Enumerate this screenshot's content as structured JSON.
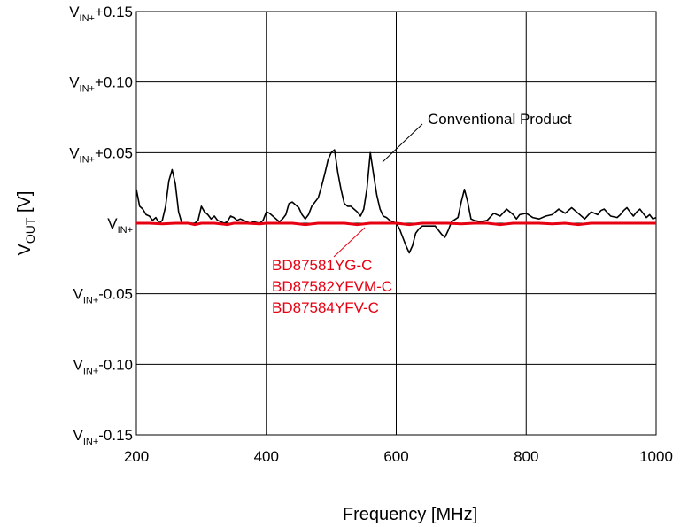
{
  "chart_data": {
    "type": "line",
    "xlabel": "Frequency [MHz]",
    "ylabel": {
      "main": "V",
      "sub": "OUT",
      "unit": " [V]"
    },
    "xlim": [
      200,
      1000
    ],
    "ylim": [
      -0.15,
      0.15
    ],
    "grid": true,
    "x_ticks": [
      "200",
      "400",
      "600",
      "800",
      "1000"
    ],
    "y_ticks": [
      {
        "value": 0.15,
        "base": "V",
        "sub": "IN+",
        "suffix": "+0.15"
      },
      {
        "value": 0.1,
        "base": "V",
        "sub": "IN+",
        "suffix": "+0.10"
      },
      {
        "value": 0.05,
        "base": "V",
        "sub": "IN+",
        "suffix": "+0.05"
      },
      {
        "value": 0.0,
        "base": "V",
        "sub": "IN+",
        "suffix": ""
      },
      {
        "value": -0.05,
        "base": "V",
        "sub": "IN+",
        "suffix": "-0.05"
      },
      {
        "value": -0.1,
        "base": "V",
        "sub": "IN+",
        "suffix": "-0.10"
      },
      {
        "value": -0.15,
        "base": "V",
        "sub": "IN+",
        "suffix": "-0.15"
      }
    ],
    "series": [
      {
        "name": "Conventional Product",
        "color": "#000000",
        "points": [
          [
            200,
            0.024
          ],
          [
            205,
            0.012
          ],
          [
            210,
            0.01
          ],
          [
            215,
            0.006
          ],
          [
            220,
            0.005
          ],
          [
            225,
            0.002
          ],
          [
            230,
            0.004
          ],
          [
            235,
            0.0
          ],
          [
            240,
            0.002
          ],
          [
            245,
            0.012
          ],
          [
            250,
            0.03
          ],
          [
            255,
            0.038
          ],
          [
            260,
            0.028
          ],
          [
            265,
            0.008
          ],
          [
            270,
            0.0
          ],
          [
            280,
            0.0
          ],
          [
            290,
            0.0
          ],
          [
            295,
            0.002
          ],
          [
            300,
            0.012
          ],
          [
            305,
            0.008
          ],
          [
            310,
            0.006
          ],
          [
            315,
            0.003
          ],
          [
            320,
            0.005
          ],
          [
            325,
            0.002
          ],
          [
            330,
            0.001
          ],
          [
            335,
            0.0
          ],
          [
            340,
            0.001
          ],
          [
            345,
            0.005
          ],
          [
            350,
            0.004
          ],
          [
            355,
            0.002
          ],
          [
            360,
            0.003
          ],
          [
            365,
            0.002
          ],
          [
            370,
            0.001
          ],
          [
            375,
            0.0
          ],
          [
            380,
            0.001
          ],
          [
            390,
            0.0
          ],
          [
            395,
            0.002
          ],
          [
            400,
            0.008
          ],
          [
            405,
            0.007
          ],
          [
            410,
            0.005
          ],
          [
            415,
            0.003
          ],
          [
            420,
            0.001
          ],
          [
            425,
            0.003
          ],
          [
            430,
            0.006
          ],
          [
            435,
            0.014
          ],
          [
            440,
            0.015
          ],
          [
            445,
            0.013
          ],
          [
            450,
            0.011
          ],
          [
            455,
            0.006
          ],
          [
            460,
            0.003
          ],
          [
            465,
            0.006
          ],
          [
            470,
            0.012
          ],
          [
            480,
            0.018
          ],
          [
            485,
            0.026
          ],
          [
            490,
            0.035
          ],
          [
            495,
            0.045
          ],
          [
            500,
            0.05
          ],
          [
            505,
            0.052
          ],
          [
            510,
            0.036
          ],
          [
            515,
            0.024
          ],
          [
            520,
            0.014
          ],
          [
            525,
            0.012
          ],
          [
            530,
            0.012
          ],
          [
            540,
            0.008
          ],
          [
            545,
            0.005
          ],
          [
            550,
            0.01
          ],
          [
            555,
            0.025
          ],
          [
            560,
            0.05
          ],
          [
            565,
            0.035
          ],
          [
            570,
            0.02
          ],
          [
            575,
            0.01
          ],
          [
            580,
            0.005
          ],
          [
            585,
            0.004
          ],
          [
            590,
            0.002
          ],
          [
            600,
            0.0
          ],
          [
            605,
            -0.004
          ],
          [
            610,
            -0.01
          ],
          [
            615,
            -0.016
          ],
          [
            620,
            -0.021
          ],
          [
            625,
            -0.016
          ],
          [
            630,
            -0.007
          ],
          [
            635,
            -0.004
          ],
          [
            640,
            -0.002
          ],
          [
            650,
            -0.002
          ],
          [
            660,
            -0.002
          ],
          [
            670,
            -0.008
          ],
          [
            675,
            -0.01
          ],
          [
            680,
            -0.005
          ],
          [
            685,
            0.001
          ],
          [
            695,
            0.004
          ],
          [
            700,
            0.015
          ],
          [
            705,
            0.024
          ],
          [
            710,
            0.015
          ],
          [
            715,
            0.003
          ],
          [
            720,
            0.002
          ],
          [
            730,
            0.001
          ],
          [
            740,
            0.002
          ],
          [
            750,
            0.007
          ],
          [
            760,
            0.005
          ],
          [
            770,
            0.01
          ],
          [
            780,
            0.006
          ],
          [
            785,
            0.003
          ],
          [
            790,
            0.006
          ],
          [
            800,
            0.007
          ],
          [
            810,
            0.004
          ],
          [
            820,
            0.003
          ],
          [
            830,
            0.005
          ],
          [
            840,
            0.006
          ],
          [
            850,
            0.01
          ],
          [
            860,
            0.007
          ],
          [
            870,
            0.011
          ],
          [
            880,
            0.007
          ],
          [
            890,
            0.003
          ],
          [
            900,
            0.008
          ],
          [
            905,
            0.007
          ],
          [
            910,
            0.006
          ],
          [
            915,
            0.009
          ],
          [
            920,
            0.01
          ],
          [
            930,
            0.005
          ],
          [
            940,
            0.004
          ],
          [
            945,
            0.006
          ],
          [
            950,
            0.009
          ],
          [
            955,
            0.011
          ],
          [
            960,
            0.008
          ],
          [
            965,
            0.005
          ],
          [
            970,
            0.008
          ],
          [
            975,
            0.01
          ],
          [
            980,
            0.007
          ],
          [
            985,
            0.004
          ],
          [
            990,
            0.006
          ],
          [
            995,
            0.003
          ],
          [
            1000,
            0.004
          ]
        ]
      },
      {
        "name": "BD87581YG-C / BD87582YFVM-C / BD87584YFV-C",
        "color": "#e60012",
        "points": [
          [
            200,
            0.0
          ],
          [
            220,
            0.0
          ],
          [
            240,
            -0.0005
          ],
          [
            260,
            0.0
          ],
          [
            280,
            0.0
          ],
          [
            290,
            -0.001
          ],
          [
            300,
            0.0
          ],
          [
            320,
            0.0
          ],
          [
            340,
            -0.001
          ],
          [
            350,
            0.0
          ],
          [
            370,
            0.0
          ],
          [
            390,
            -0.0005
          ],
          [
            400,
            0.0
          ],
          [
            420,
            0.0
          ],
          [
            440,
            0.0
          ],
          [
            460,
            -0.001
          ],
          [
            480,
            0.0
          ],
          [
            500,
            0.0
          ],
          [
            520,
            0.0
          ],
          [
            540,
            -0.001
          ],
          [
            560,
            0.0
          ],
          [
            580,
            0.0
          ],
          [
            600,
            0.0
          ],
          [
            620,
            -0.001
          ],
          [
            640,
            0.0
          ],
          [
            660,
            0.0
          ],
          [
            680,
            0.0
          ],
          [
            700,
            -0.0005
          ],
          [
            720,
            0.0
          ],
          [
            740,
            0.0
          ],
          [
            760,
            -0.001
          ],
          [
            780,
            0.0
          ],
          [
            800,
            0.0
          ],
          [
            820,
            0.0
          ],
          [
            840,
            -0.0005
          ],
          [
            860,
            0.0
          ],
          [
            880,
            -0.001
          ],
          [
            900,
            0.0
          ],
          [
            920,
            0.0
          ],
          [
            940,
            0.0
          ],
          [
            960,
            0.0
          ],
          [
            980,
            0.0
          ],
          [
            1000,
            0.0
          ]
        ]
      }
    ],
    "annotations": {
      "conventional": "Conventional Product",
      "red": [
        "BD87581YG-C",
        "BD87582YFVM-C",
        "BD87584YFV-C"
      ]
    }
  }
}
